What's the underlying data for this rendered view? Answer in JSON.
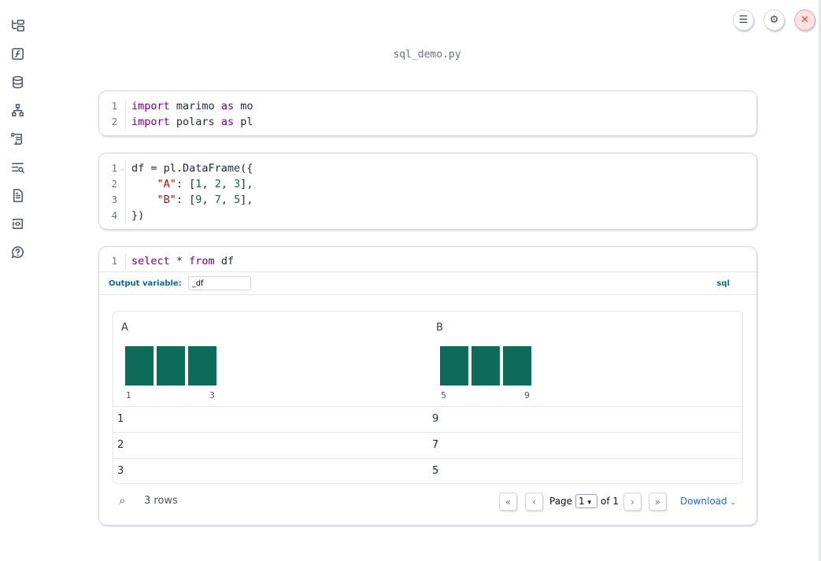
{
  "sidebar": {
    "items": [
      {
        "icon": "file-tree-icon"
      },
      {
        "icon": "function-icon"
      },
      {
        "icon": "database-icon"
      },
      {
        "icon": "dependency-graph-icon"
      },
      {
        "icon": "scroll-icon"
      },
      {
        "icon": "search-list-icon"
      },
      {
        "icon": "document-icon"
      },
      {
        "icon": "code-snippet-icon"
      },
      {
        "icon": "help-chat-icon"
      }
    ]
  },
  "toolbar": {
    "menu_icon": "menu-icon",
    "settings_icon": "gear-icon",
    "close_icon": "close-icon",
    "close_color": "#fee2e2"
  },
  "title": "sql_demo.py",
  "cells": [
    {
      "lines": [
        [
          {
            "t": "import",
            "c": "kw"
          },
          {
            "t": " marimo "
          },
          {
            "t": "as",
            "c": "kw"
          },
          {
            "t": " mo"
          }
        ],
        [
          {
            "t": "import",
            "c": "kw"
          },
          {
            "t": " polars "
          },
          {
            "t": "as",
            "c": "kw"
          },
          {
            "t": " pl"
          }
        ]
      ]
    },
    {
      "lines": [
        [
          {
            "t": "df = pl.DataFrame({"
          }
        ],
        [
          {
            "t": "    "
          },
          {
            "t": "\"A\"",
            "c": "str"
          },
          {
            "t": ": ["
          },
          {
            "t": "1",
            "c": "nm"
          },
          {
            "t": ", "
          },
          {
            "t": "2",
            "c": "nm"
          },
          {
            "t": ", "
          },
          {
            "t": "3",
            "c": "nm"
          },
          {
            "t": "],"
          }
        ],
        [
          {
            "t": "    "
          },
          {
            "t": "\"B\"",
            "c": "str"
          },
          {
            "t": ": ["
          },
          {
            "t": "9",
            "c": "nm"
          },
          {
            "t": ", "
          },
          {
            "t": "7",
            "c": "nm"
          },
          {
            "t": ", "
          },
          {
            "t": "5",
            "c": "nm"
          },
          {
            "t": "],"
          }
        ],
        [
          {
            "t": "})"
          }
        ]
      ]
    },
    {
      "lines": [
        [
          {
            "t": "select",
            "c": "kw"
          },
          {
            "t": " * "
          },
          {
            "t": "from",
            "c": "kw"
          },
          {
            "t": " df"
          }
        ]
      ]
    }
  ],
  "sql": {
    "output_label": "Output variable:",
    "output_value": "_df",
    "badge": "sql"
  },
  "table": {
    "columns": [
      {
        "name": "A",
        "hist_bins": [
          1,
          1,
          1
        ],
        "min": "1",
        "max": "3"
      },
      {
        "name": "B",
        "hist_bins": [
          1,
          1,
          1
        ],
        "min": "5",
        "max": "9"
      }
    ],
    "rows": [
      [
        "1",
        "9"
      ],
      [
        "2",
        "7"
      ],
      [
        "3",
        "5"
      ]
    ],
    "bar_color": "#0e6b5a",
    "row_count": "3 rows",
    "page_label": "Page",
    "page_value": "1",
    "page_of": "of 1",
    "download": "Download"
  }
}
